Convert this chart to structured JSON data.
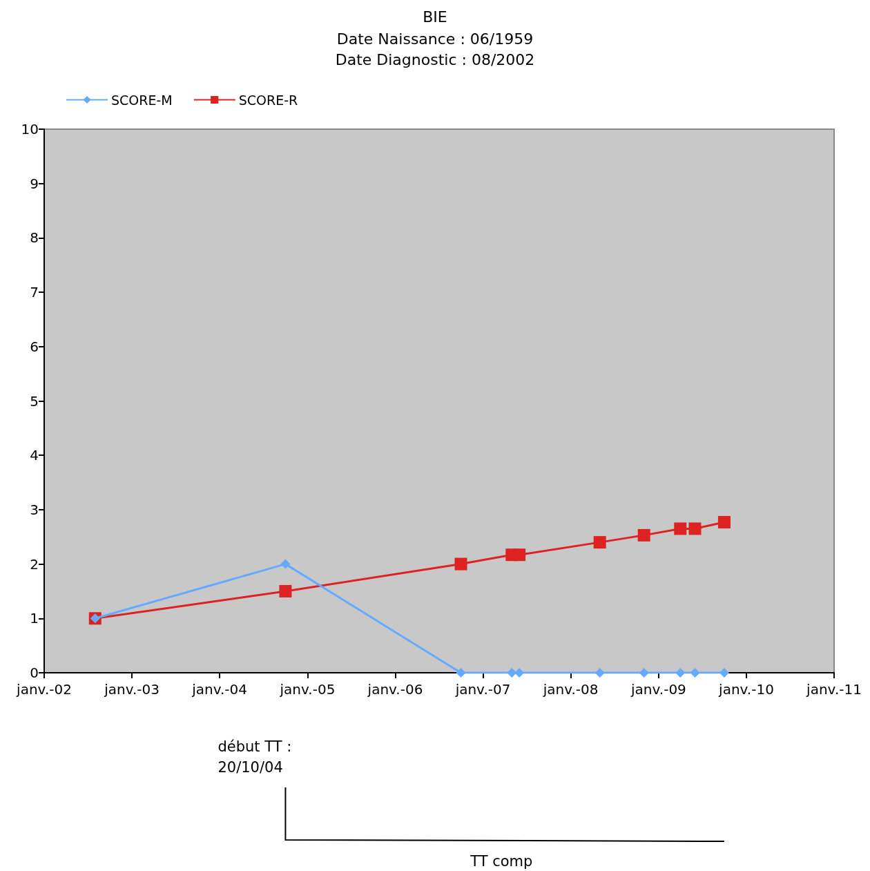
{
  "chart_data": {
    "type": "line",
    "title": "BIE",
    "subtitle": "Date Naissance : 06/1959\nDate Diagnostic : 08/2002",
    "legend": "top left",
    "grid": false,
    "xlim": [
      "2002-01",
      "2011-01"
    ],
    "xticks": [
      {
        "value": "2002-01",
        "label": "janv.-02"
      },
      {
        "value": "2003-01",
        "label": "janv.-03"
      },
      {
        "value": "2004-01",
        "label": "janv.-04"
      },
      {
        "value": "2005-01",
        "label": "janv.-05"
      },
      {
        "value": "2006-01",
        "label": "janv.-06"
      },
      {
        "value": "2007-01",
        "label": "janv.-07"
      },
      {
        "value": "2008-01",
        "label": "janv.-08"
      },
      {
        "value": "2009-01",
        "label": "janv.-09"
      },
      {
        "value": "2010-01",
        "label": "janv.-10"
      },
      {
        "value": "2011-01",
        "label": "janv.-11"
      }
    ],
    "ylim": [
      0,
      10
    ],
    "yticks": [
      0,
      1,
      2,
      3,
      4,
      5,
      6,
      7,
      8,
      9,
      10
    ],
    "x": [
      "2002-08",
      "2004-10",
      "2006-10",
      "2007-05",
      "2007-06",
      "2008-05",
      "2008-11",
      "2009-04",
      "2009-06",
      "2009-10"
    ],
    "series": [
      {
        "name": "SCORE-M",
        "color": "#66aaff",
        "marker": "diamond",
        "values": [
          1,
          2,
          0,
          0,
          0,
          0,
          0,
          0,
          0,
          0
        ]
      },
      {
        "name": "SCORE-R",
        "color": "#dd2222",
        "marker": "square",
        "values": [
          1,
          1.5,
          2,
          2.17,
          2.17,
          2.4,
          2.53,
          2.65,
          2.65,
          2.77
        ]
      }
    ],
    "annotations": [
      "début TT :\n20/10/04",
      "TT comp"
    ]
  }
}
